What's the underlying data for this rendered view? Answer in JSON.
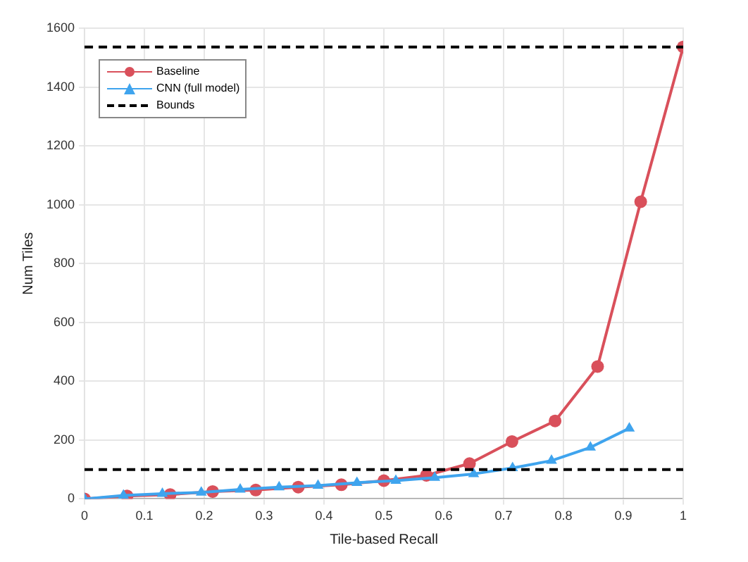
{
  "chart_data": {
    "type": "line",
    "xlabel": "Tile-based Recall",
    "ylabel": "Num Tiles",
    "xlim": [
      0,
      1
    ],
    "xticks": [
      0,
      0.1,
      0.2,
      0.3,
      0.4,
      0.5,
      0.6,
      0.7,
      0.8,
      0.9,
      1
    ],
    "ylim": [
      0,
      1600
    ],
    "yticks": [
      0,
      200,
      400,
      600,
      800,
      1000,
      1200,
      1400,
      1600
    ],
    "grid": true,
    "legend": "top left",
    "line_style": "solid",
    "series": [
      {
        "name": "Baseline",
        "color": "#d9505b",
        "marker": "circle",
        "x": [
          0,
          0.071,
          0.143,
          0.214,
          0.286,
          0.357,
          0.429,
          0.5,
          0.571,
          0.643,
          0.714,
          0.786,
          0.857,
          0.929,
          1
        ],
        "values": [
          0,
          10,
          15,
          25,
          30,
          40,
          48,
          62,
          80,
          120,
          195,
          265,
          450,
          1010,
          1536
        ]
      },
      {
        "name": "CNN (full model)",
        "color": "#3fa4ee",
        "marker": "triangle",
        "x": [
          0,
          0.065,
          0.13,
          0.195,
          0.26,
          0.325,
          0.39,
          0.455,
          0.52,
          0.585,
          0.65,
          0.715,
          0.78,
          0.845,
          0.91
        ],
        "values": [
          0,
          12,
          18,
          22,
          32,
          40,
          45,
          55,
          62,
          72,
          85,
          105,
          130,
          175,
          240
        ]
      }
    ],
    "ref_lines": [
      {
        "axis": "y",
        "value": 100,
        "label": "Bounds",
        "color": "#000000",
        "line_style": "dashed"
      },
      {
        "axis": "y",
        "value": 1536,
        "color": "#000000",
        "line_style": "dashed"
      }
    ]
  }
}
